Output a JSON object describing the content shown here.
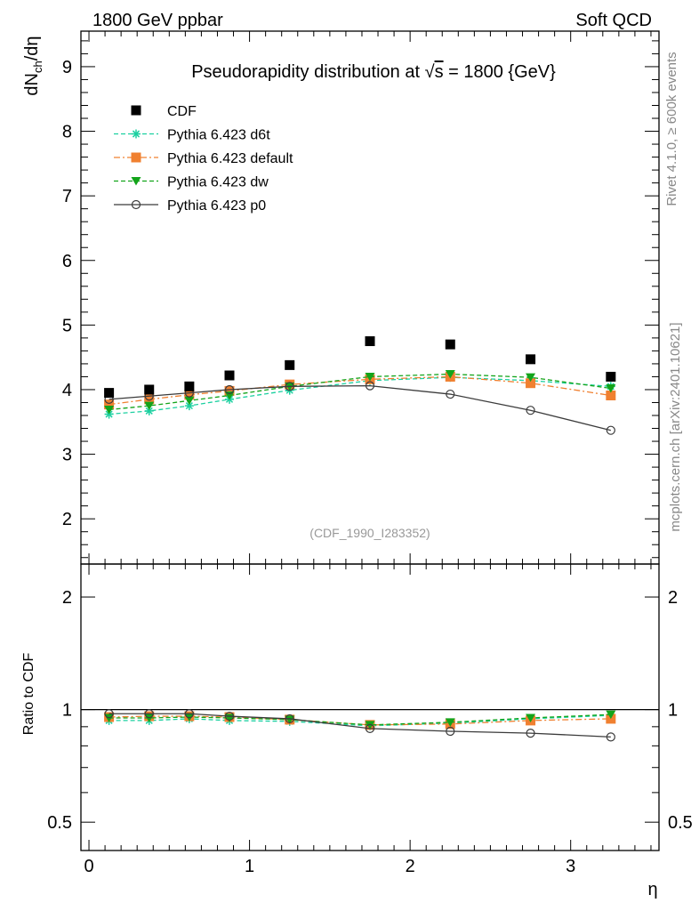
{
  "header": {
    "left": "1800 GeV ppbar",
    "right": "Soft QCD"
  },
  "side": {
    "rivet": "Rivet 4.1.0, ≥ 600k events",
    "mcplots": "mcplots.cern.ch [arXiv:2401.10621]"
  },
  "chart_data": {
    "type": "scatter",
    "title_pre": "Pseudorapidity distribution at ",
    "title_sqrt": "√",
    "title_s": "s",
    "title_post": " = 1800 {GeV}",
    "ylabel_main": "dN",
    "ylabel_sub": "ch",
    "ylabel_tail": "/dη",
    "ylabel_ratio": "Ratio to CDF",
    "xlabel": "η",
    "analysis_id": "(CDF_1990_I283352)",
    "xlim": [
      -0.05,
      3.55
    ],
    "ylim_main": [
      1.3,
      9.55
    ],
    "ylim_ratio": [
      0.42,
      2.45
    ],
    "ratio_log_scale": true,
    "x_ticks": [
      0,
      1,
      2,
      3
    ],
    "x_tick_labels": [
      "0",
      "1",
      "2",
      "3"
    ],
    "y_ticks_main": [
      2,
      3,
      4,
      5,
      6,
      7,
      8,
      9
    ],
    "y_tick_labels_main": [
      "2",
      "3",
      "4",
      "5",
      "6",
      "7",
      "8",
      "9"
    ],
    "y_ticks_ratio": [
      0.5,
      1,
      2
    ],
    "y_tick_labels_ratio": [
      "0.5",
      "1",
      "2"
    ],
    "x": [
      0.125,
      0.375,
      0.625,
      0.875,
      1.25,
      1.75,
      2.25,
      2.75,
      3.25
    ],
    "series": [
      {
        "name": "CDF",
        "color": "#000000",
        "marker": "square",
        "line": "none",
        "values": [
          3.95,
          4.0,
          4.05,
          4.22,
          4.38,
          4.75,
          4.7,
          4.47,
          4.2
        ],
        "ratio": []
      },
      {
        "name": "Pythia 6.423 d6t",
        "color": "#1bd0a0",
        "marker": "star",
        "line": "dashed",
        "values": [
          3.62,
          3.67,
          3.75,
          3.85,
          3.99,
          4.14,
          4.19,
          4.14,
          4.05
        ],
        "ratio": [
          0.935,
          0.935,
          0.945,
          0.935,
          0.93,
          0.905,
          0.92,
          0.945,
          0.965
        ]
      },
      {
        "name": "Pythia 6.423 default",
        "color": "#f08030",
        "marker": "square",
        "line": "dashdot",
        "values": [
          3.77,
          3.85,
          3.92,
          3.98,
          4.08,
          4.16,
          4.2,
          4.1,
          3.91
        ],
        "ratio": [
          0.955,
          0.96,
          0.96,
          0.955,
          0.94,
          0.91,
          0.915,
          0.935,
          0.945
        ]
      },
      {
        "name": "Pythia 6.423 dw",
        "color": "#13a41a",
        "marker": "triangle-down",
        "line": "dashed",
        "values": [
          3.69,
          3.75,
          3.83,
          3.91,
          4.05,
          4.2,
          4.24,
          4.19,
          4.02
        ],
        "ratio": [
          0.95,
          0.95,
          0.955,
          0.95,
          0.94,
          0.91,
          0.925,
          0.95,
          0.97
        ]
      },
      {
        "name": "Pythia 6.423 p0",
        "color": "#3b3b3b",
        "marker": "circle-open",
        "line": "solid",
        "values": [
          3.85,
          3.9,
          3.95,
          4.0,
          4.05,
          4.06,
          3.93,
          3.68,
          3.37
        ],
        "ratio": [
          0.975,
          0.975,
          0.975,
          0.96,
          0.945,
          0.89,
          0.875,
          0.865,
          0.845
        ]
      }
    ]
  }
}
